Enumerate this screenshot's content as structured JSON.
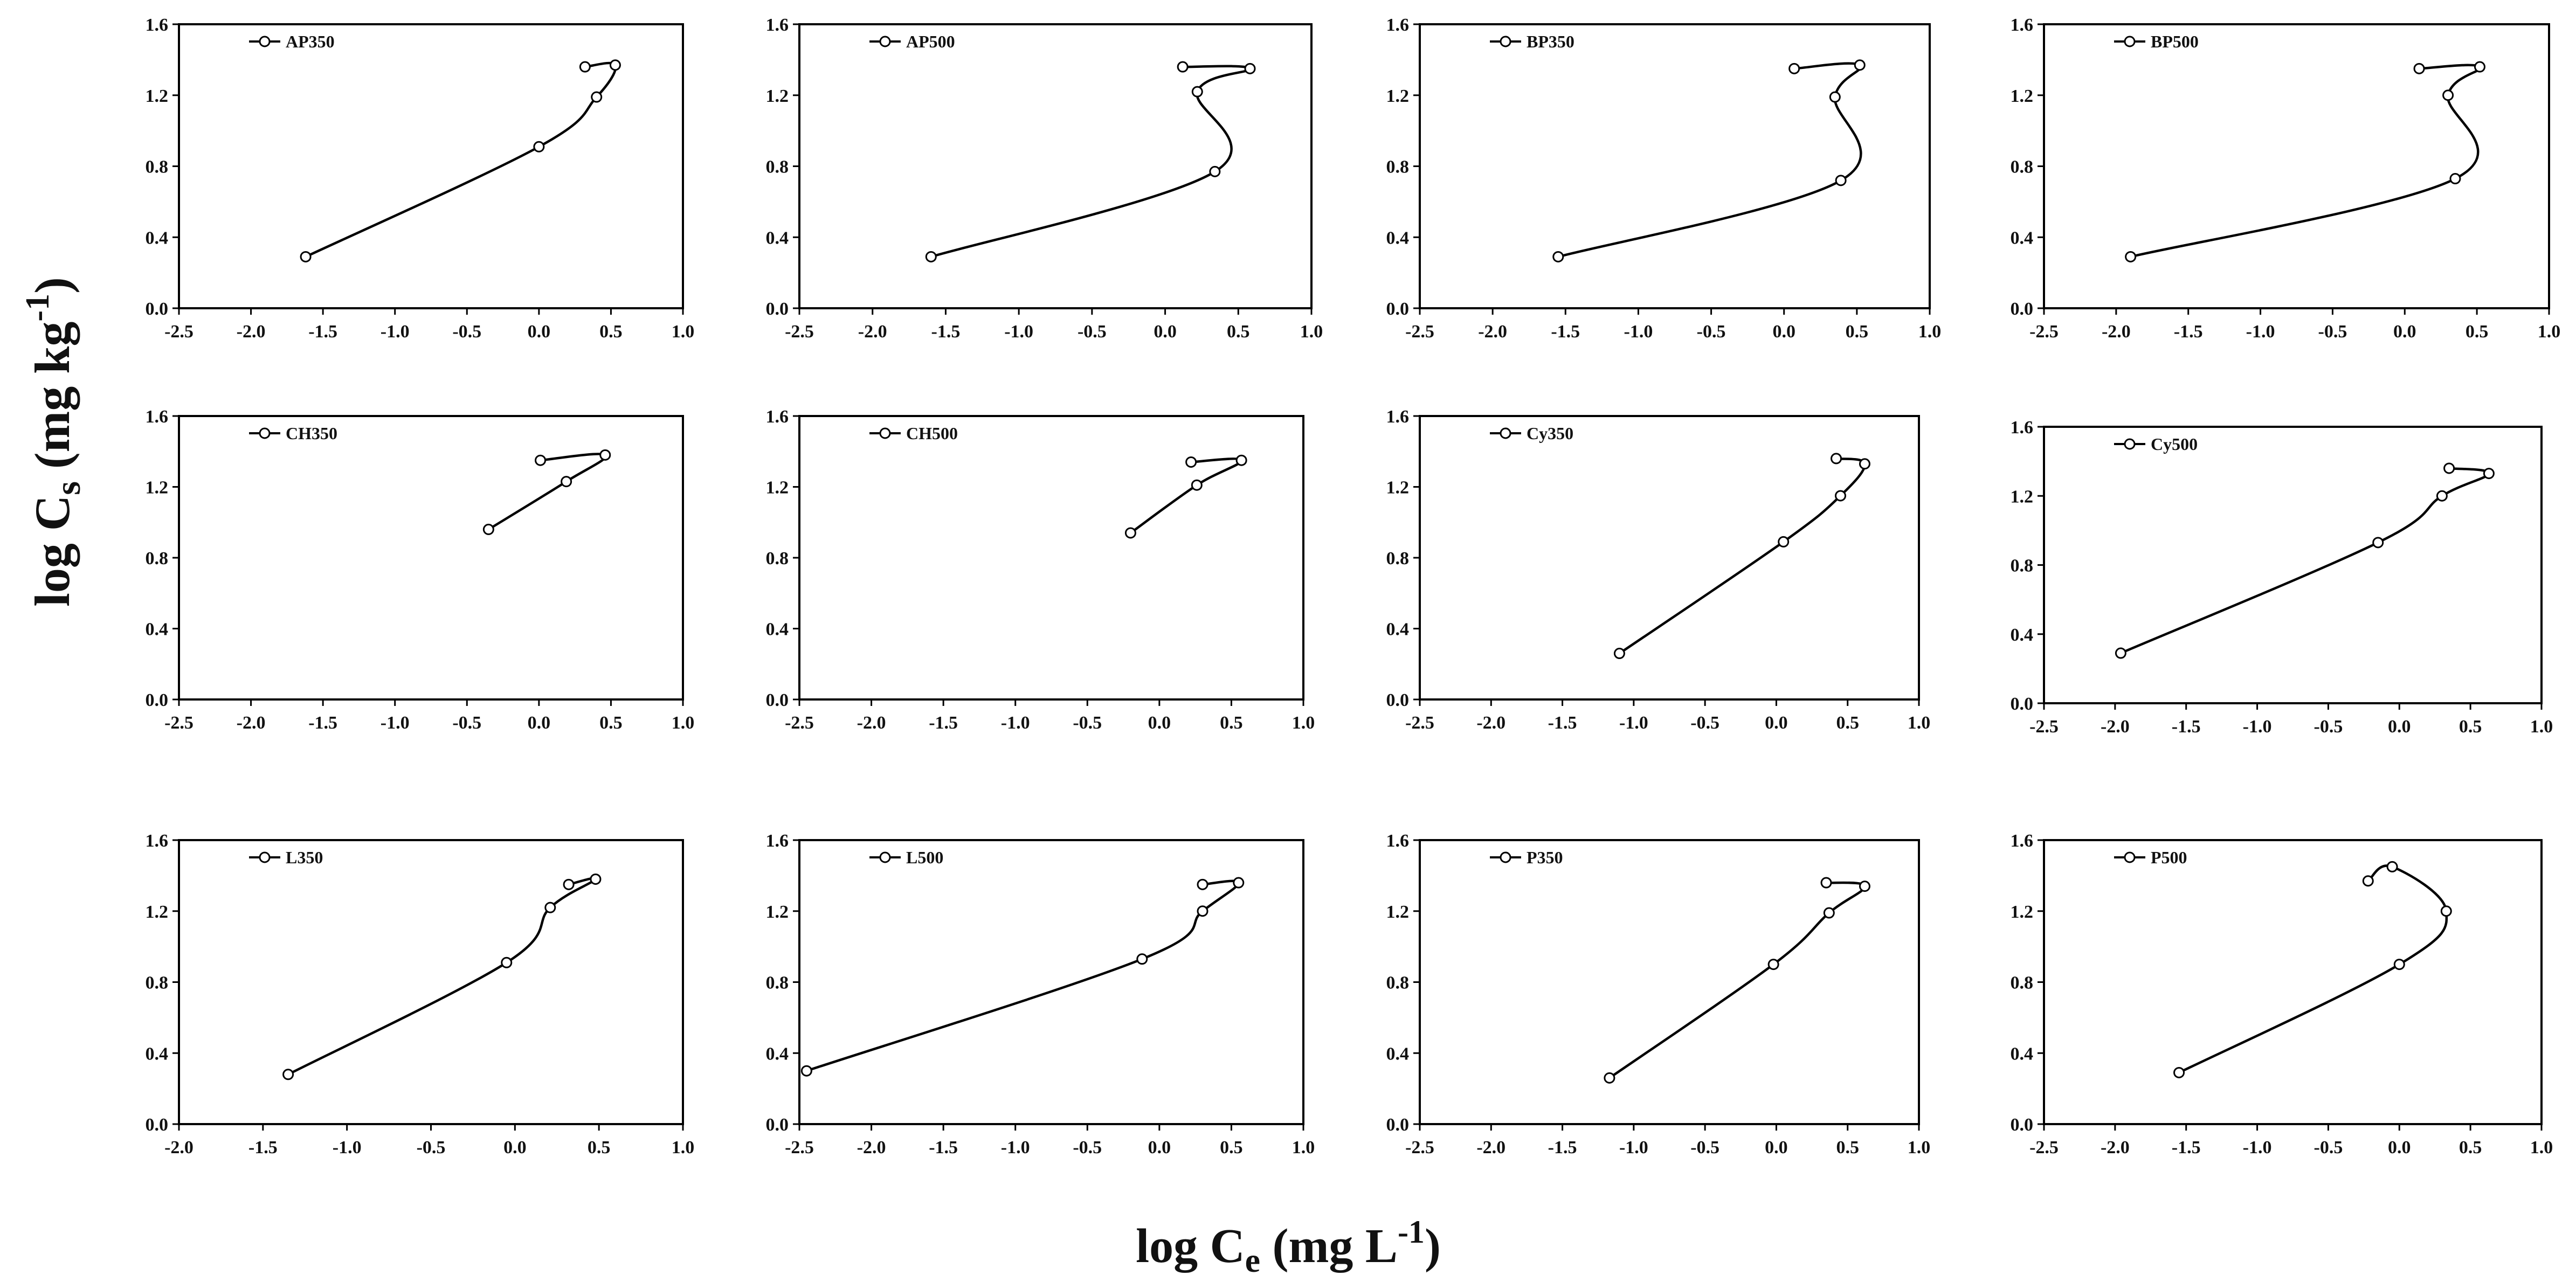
{
  "figure": {
    "xlabel_main": "log C",
    "xlabel_sub": "e",
    "xlabel_unit": " (mg L",
    "xlabel_sup": "-1",
    "xlabel_close": ")",
    "ylabel_main": "log C",
    "ylabel_sub": "s",
    "ylabel_unit": " (mg kg",
    "ylabel_sup": "-1",
    "ylabel_close": ")"
  },
  "colors": {
    "line": "#000000",
    "marker_fill": "#ffffff",
    "frame": "#000000"
  },
  "chart_data": [
    {
      "type": "line",
      "title": "AP350",
      "series": [
        {
          "name": "AP350",
          "x": [
            -1.62,
            0.0,
            0.4,
            0.53,
            0.32
          ],
          "y": [
            0.29,
            0.91,
            1.19,
            1.37,
            1.36
          ]
        }
      ],
      "xlim": [
        -2.5,
        1.0
      ],
      "ylim": [
        0.0,
        1.6
      ],
      "xticks": [
        "-2.5",
        "-2.0",
        "-1.5",
        "-1.0",
        "-0.5",
        "0.0",
        "0.5",
        "1.0"
      ],
      "yticks": [
        "0.0",
        "0.4",
        "0.8",
        "1.2",
        "1.6"
      ]
    },
    {
      "type": "line",
      "title": "AP500",
      "series": [
        {
          "name": "AP500",
          "x": [
            -1.6,
            0.34,
            0.22,
            0.58,
            0.12
          ],
          "y": [
            0.29,
            0.77,
            1.22,
            1.35,
            1.36
          ]
        }
      ],
      "xlim": [
        -2.5,
        1.0
      ],
      "ylim": [
        0.0,
        1.6
      ],
      "xticks": [
        "-2.5",
        "-2.0",
        "-1.5",
        "-1.0",
        "-0.5",
        "0.0",
        "0.5",
        "1.0"
      ],
      "yticks": [
        "0.0",
        "0.4",
        "0.8",
        "1.2",
        "1.6"
      ]
    },
    {
      "type": "line",
      "title": "BP350",
      "series": [
        {
          "name": "BP350",
          "x": [
            -1.55,
            0.39,
            0.35,
            0.52,
            0.07
          ],
          "y": [
            0.29,
            0.72,
            1.19,
            1.37,
            1.35
          ]
        }
      ],
      "xlim": [
        -2.5,
        1.0
      ],
      "ylim": [
        0.0,
        1.6
      ],
      "xticks": [
        "-2.5",
        "-2.0",
        "-1.5",
        "-1.0",
        "-0.5",
        "0.0",
        "0.5",
        "1.0"
      ],
      "yticks": [
        "0.0",
        "0.4",
        "0.8",
        "1.2",
        "1.6"
      ]
    },
    {
      "type": "line",
      "title": "BP500",
      "series": [
        {
          "name": "BP500",
          "x": [
            -1.9,
            0.35,
            0.3,
            0.52,
            0.1
          ],
          "y": [
            0.29,
            0.73,
            1.2,
            1.36,
            1.35
          ]
        }
      ],
      "xlim": [
        -2.5,
        1.0
      ],
      "ylim": [
        0.0,
        1.6
      ],
      "xticks": [
        "-2.5",
        "-2.0",
        "-1.5",
        "-1.0",
        "-0.5",
        "0.0",
        "0.5",
        "1.0"
      ],
      "yticks": [
        "0.0",
        "0.4",
        "0.8",
        "1.2",
        "1.6"
      ]
    },
    {
      "type": "line",
      "title": "CH350",
      "series": [
        {
          "name": "CH350",
          "x": [
            -0.35,
            0.19,
            0.46,
            0.01
          ],
          "y": [
            0.96,
            1.23,
            1.38,
            1.35
          ]
        }
      ],
      "xlim": [
        -2.5,
        1.0
      ],
      "ylim": [
        0.0,
        1.6
      ],
      "xticks": [
        "-2.5",
        "-2.0",
        "-1.5",
        "-1.0",
        "-0.5",
        "0.0",
        "0.5",
        "1.0"
      ],
      "yticks": [
        "0.0",
        "0.4",
        "0.8",
        "1.2",
        "1.6"
      ]
    },
    {
      "type": "line",
      "title": "CH500",
      "series": [
        {
          "name": "CH500",
          "x": [
            -0.2,
            0.26,
            0.57,
            0.22
          ],
          "y": [
            0.94,
            1.21,
            1.35,
            1.34
          ]
        }
      ],
      "xlim": [
        -2.5,
        1.0
      ],
      "ylim": [
        0.0,
        1.6
      ],
      "xticks": [
        "-2.5",
        "-2.0",
        "-1.5",
        "-1.0",
        "-0.5",
        "0.0",
        "0.5",
        "1.0"
      ],
      "yticks": [
        "0.0",
        "0.4",
        "0.8",
        "1.2",
        "1.6"
      ]
    },
    {
      "type": "line",
      "title": "Cy350",
      "series": [
        {
          "name": "Cy350",
          "x": [
            -1.1,
            0.05,
            0.45,
            0.62,
            0.42
          ],
          "y": [
            0.26,
            0.89,
            1.15,
            1.33,
            1.36
          ]
        }
      ],
      "xlim": [
        -2.5,
        1.0
      ],
      "ylim": [
        0.0,
        1.6
      ],
      "xticks": [
        "-2.5",
        "-2.0",
        "-1.5",
        "-1.0",
        "-0.5",
        "0.0",
        "0.5",
        "1.0"
      ],
      "yticks": [
        "0.0",
        "0.4",
        "0.8",
        "1.2",
        "1.6"
      ]
    },
    {
      "type": "line",
      "title": "Cy500",
      "series": [
        {
          "name": "Cy500",
          "x": [
            -1.96,
            -0.15,
            0.3,
            0.63,
            0.35
          ],
          "y": [
            0.29,
            0.93,
            1.2,
            1.33,
            1.36
          ]
        }
      ],
      "xlim": [
        -2.5,
        1.0
      ],
      "ylim": [
        0.0,
        1.6
      ],
      "xticks": [
        "-2.5",
        "-2.0",
        "-1.5",
        "-1.0",
        "-0.5",
        "0.0",
        "0.5",
        "1.0"
      ],
      "yticks": [
        "0.0",
        "0.4",
        "0.8",
        "1.2",
        "1.6"
      ]
    },
    {
      "type": "line",
      "title": "L350",
      "series": [
        {
          "name": "L350",
          "x": [
            -1.35,
            -0.05,
            0.21,
            0.48,
            0.32
          ],
          "y": [
            0.28,
            0.91,
            1.22,
            1.38,
            1.35
          ]
        }
      ],
      "xlim": [
        -2.0,
        1.0
      ],
      "ylim": [
        0.0,
        1.6
      ],
      "xticks": [
        "-2.0",
        "-1.5",
        "-1.0",
        "-0.5",
        "0.0",
        "0.5",
        "1.0"
      ],
      "yticks": [
        "0.0",
        "0.4",
        "0.8",
        "1.2",
        "1.6"
      ]
    },
    {
      "type": "line",
      "title": "L500",
      "series": [
        {
          "name": "L500",
          "x": [
            -2.45,
            -0.12,
            0.3,
            0.55,
            0.3
          ],
          "y": [
            0.3,
            0.93,
            1.2,
            1.36,
            1.35
          ]
        }
      ],
      "xlim": [
        -2.5,
        1.0
      ],
      "ylim": [
        0.0,
        1.6
      ],
      "xticks": [
        "-2.5",
        "-2.0",
        "-1.5",
        "-1.0",
        "-0.5",
        "0.0",
        "0.5",
        "1.0"
      ],
      "yticks": [
        "0.0",
        "0.4",
        "0.8",
        "1.2",
        "1.6"
      ]
    },
    {
      "type": "line",
      "title": "P350",
      "series": [
        {
          "name": "P350",
          "x": [
            -1.17,
            -0.02,
            0.37,
            0.62,
            0.35
          ],
          "y": [
            0.26,
            0.9,
            1.19,
            1.34,
            1.36
          ]
        }
      ],
      "xlim": [
        -2.5,
        1.0
      ],
      "ylim": [
        0.0,
        1.6
      ],
      "xticks": [
        "-2.5",
        "-2.0",
        "-1.5",
        "-1.0",
        "-0.5",
        "0.0",
        "0.5",
        "1.0"
      ],
      "yticks": [
        "0.0",
        "0.4",
        "0.8",
        "1.2",
        "1.6"
      ]
    },
    {
      "type": "line",
      "title": "P500",
      "series": [
        {
          "name": "P500",
          "x": [
            -1.55,
            0.0,
            0.33,
            -0.05,
            -0.22
          ],
          "y": [
            0.29,
            0.9,
            1.2,
            1.45,
            1.37
          ]
        }
      ],
      "xlim": [
        -2.5,
        1.0
      ],
      "ylim": [
        0.0,
        1.6
      ],
      "xticks": [
        "-2.5",
        "-2.0",
        "-1.5",
        "-1.0",
        "-0.5",
        "0.0",
        "0.5",
        "1.0"
      ],
      "yticks": [
        "0.0",
        "0.4",
        "0.8",
        "1.2",
        "1.6"
      ]
    }
  ]
}
